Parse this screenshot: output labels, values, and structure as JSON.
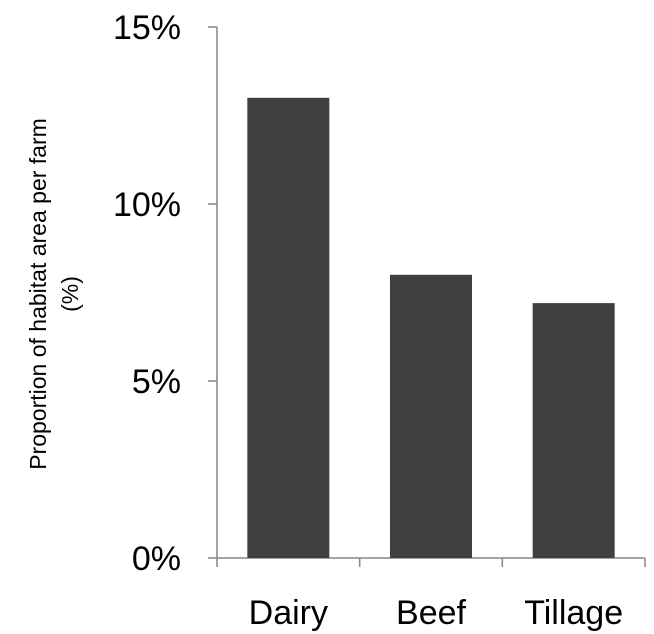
{
  "chart_data": {
    "type": "bar",
    "title": "",
    "xlabel": "",
    "ylabel": [
      "Proportion of habitat area per farm",
      "(%)"
    ],
    "categories": [
      "Dairy",
      "Beef",
      "Tillage"
    ],
    "values": [
      13,
      8,
      7.2
    ],
    "ylim": [
      0,
      15
    ],
    "yticks": [
      0,
      5,
      10,
      15
    ],
    "ytick_labels": [
      "0%",
      "5%",
      "10%",
      "15%"
    ],
    "grid": false,
    "legend": "none",
    "bar_color": "#404040",
    "axis_color": "#868686"
  }
}
